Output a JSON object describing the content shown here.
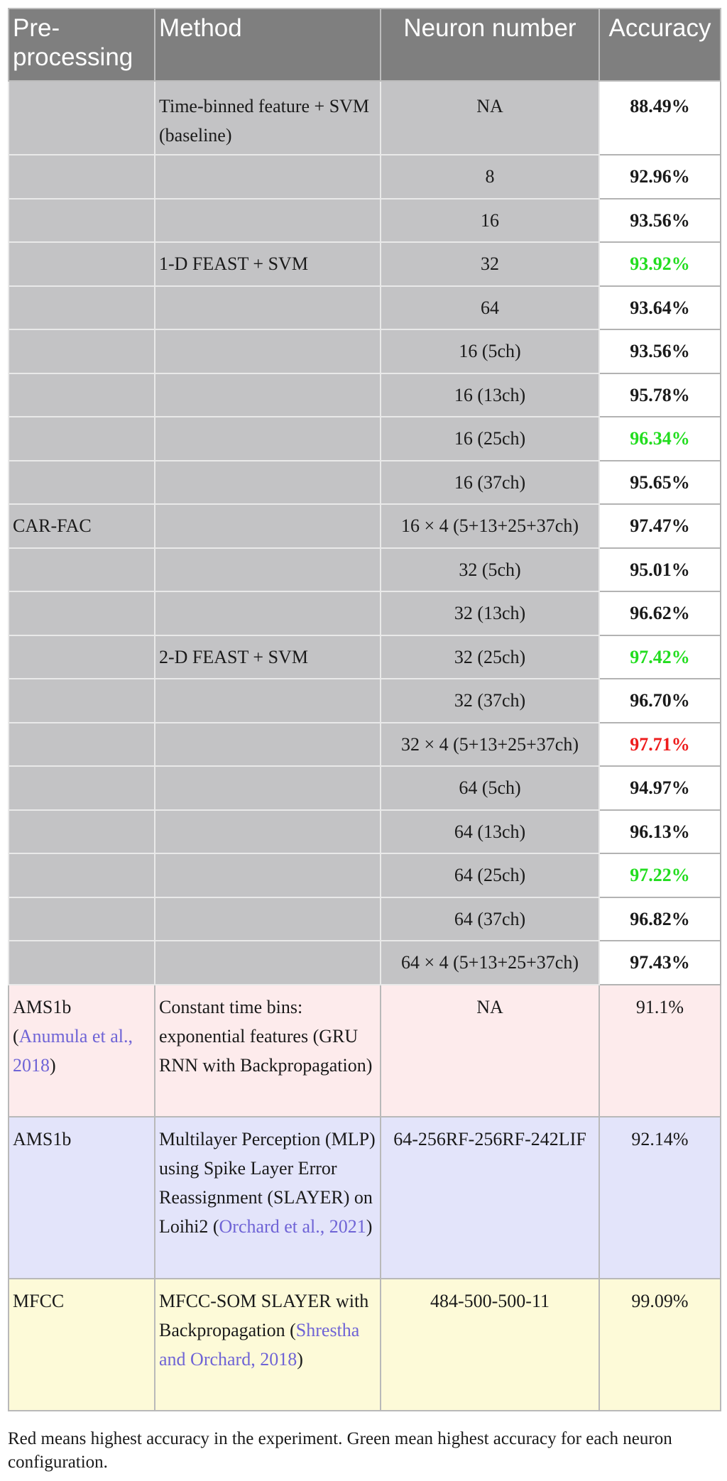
{
  "headers": [
    "Pre-processing",
    "Method",
    "Neuron number",
    "Accuracy"
  ],
  "baseline": {
    "method": "Time-binned feature + SVM (baseline)",
    "neurons": "NA",
    "accuracy": "88.49%"
  },
  "car_fac": {
    "preprocessing": "CAR-FAC",
    "method_1d": "1-D FEAST + SVM",
    "method_2d": "2-D FEAST + SVM",
    "rows": [
      {
        "neurons": "8",
        "accuracy": "92.96%",
        "highlight": "none"
      },
      {
        "neurons": "16",
        "accuracy": "93.56%",
        "highlight": "none"
      },
      {
        "neurons": "32",
        "accuracy": "93.92%",
        "highlight": "green"
      },
      {
        "neurons": "64",
        "accuracy": "93.64%",
        "highlight": "none"
      },
      {
        "neurons": "16 (5ch)",
        "accuracy": "93.56%",
        "highlight": "none"
      },
      {
        "neurons": "16 (13ch)",
        "accuracy": "95.78%",
        "highlight": "none"
      },
      {
        "neurons": "16 (25ch)",
        "accuracy": "96.34%",
        "highlight": "green"
      },
      {
        "neurons": "16 (37ch)",
        "accuracy": "95.65%",
        "highlight": "none"
      },
      {
        "neurons": "16 × 4 (5+13+25+37ch)",
        "accuracy": "97.47%",
        "highlight": "none"
      },
      {
        "neurons": "32 (5ch)",
        "accuracy": "95.01%",
        "highlight": "none"
      },
      {
        "neurons": "32 (13ch)",
        "accuracy": "96.62%",
        "highlight": "none"
      },
      {
        "neurons": "32 (25ch)",
        "accuracy": "97.42%",
        "highlight": "green"
      },
      {
        "neurons": "32 (37ch)",
        "accuracy": "96.70%",
        "highlight": "none"
      },
      {
        "neurons": "32 × 4 (5+13+25+37ch)",
        "accuracy": "97.71%",
        "highlight": "red"
      },
      {
        "neurons": "64 (5ch)",
        "accuracy": "94.97%",
        "highlight": "none"
      },
      {
        "neurons": "64 (13ch)",
        "accuracy": "96.13%",
        "highlight": "none"
      },
      {
        "neurons": "64 (25ch)",
        "accuracy": "97.22%",
        "highlight": "green"
      },
      {
        "neurons": "64 (37ch)",
        "accuracy": "96.82%",
        "highlight": "none"
      },
      {
        "neurons": "64 × 4 (5+13+25+37ch)",
        "accuracy": "97.43%",
        "highlight": "none"
      }
    ]
  },
  "ams_gru": {
    "preprocessing": "AMS1b",
    "cite_open": "(",
    "cite_text_1": "Anumula et al.,",
    "cite_text_2": "2018",
    "cite_close": ")",
    "method": "Constant time bins: exponential features (GRU RNN with Backpropagation)",
    "neurons": "NA",
    "accuracy": "91.1%"
  },
  "ams_slayer": {
    "preprocessing": "AMS1b",
    "method": "Multilayer Perception (MLP) using Spike Layer Error Reassignment (SLAYER) on Loihi2",
    "cite_open": "(",
    "cite_text": "Orchard et al., 2021",
    "cite_close": ")",
    "neurons": "64-256RF-256RF-242LIF",
    "accuracy": "92.14%"
  },
  "mfcc": {
    "preprocessing": "MFCC",
    "method": "MFCC-SOM SLAYER with Backpropagation",
    "cite_open": "(",
    "cite_text": "Shrestha and Orchard, 2018",
    "cite_close": ")",
    "neurons": "484-500-500-11",
    "accuracy": "99.09%"
  },
  "footnote": "Red means highest accuracy in the experiment. Green mean highest accuracy for each neuron configuration.",
  "colors": {
    "header_bg": "#7f7f7f",
    "car_fac_bg": "#c3c3c5",
    "highlight_green": "#22dd1f",
    "highlight_red": "#ee1c1c",
    "ams_gru_bg": "#fdebec",
    "ams_slayer_bg": "#e3e4fa",
    "mfcc_bg": "#fdfad8",
    "citation": "#6f64d6"
  }
}
